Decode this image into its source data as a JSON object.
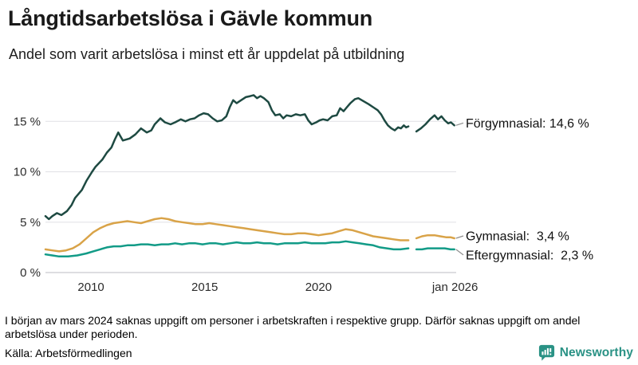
{
  "header": {
    "title": "Långtidsarbetslösa i Gävle kommun",
    "subtitle": "Andel som varit arbetslösa i minst ett år uppdelat på utbildning"
  },
  "chart_data": {
    "type": "line",
    "title": "Långtidsarbetslösa i Gävle kommun",
    "subtitle": "Andel som varit arbetslösa i minst ett år uppdelat på utbildning",
    "unit": "%",
    "grid": "horizontal-only",
    "legend_position": "end-of-line-labels-right",
    "x_axis": {
      "range": [
        2008.0,
        2026.05
      ],
      "ticks": [
        {
          "t": 2010,
          "label": "2010"
        },
        {
          "t": 2015,
          "label": "2015"
        },
        {
          "t": 2020,
          "label": "2020"
        },
        {
          "t": 2026.0,
          "label": "jan 2026"
        }
      ]
    },
    "y_axis": {
      "range": [
        0,
        18
      ],
      "ticks": [
        {
          "v": 0,
          "label": "0 %"
        },
        {
          "v": 5,
          "label": "5 %"
        },
        {
          "v": 10,
          "label": "10 %"
        },
        {
          "v": 15,
          "label": "15 %"
        }
      ]
    },
    "data_gap": {
      "from": 2023.95,
      "to": 2024.3,
      "reason": "mars 2024 saknas uppgift"
    },
    "series": [
      {
        "id": "forgymnasial",
        "name": "Förgymnasial",
        "end_value": 14.6,
        "end_label": "Förgymnasial: 14,6 %",
        "color": "#1e4a42",
        "segments": [
          [
            [
              2008.0,
              5.6
            ],
            [
              2008.15,
              5.3
            ],
            [
              2008.3,
              5.6
            ],
            [
              2008.5,
              5.9
            ],
            [
              2008.7,
              5.7
            ],
            [
              2008.95,
              6.1
            ],
            [
              2009.15,
              6.7
            ],
            [
              2009.3,
              7.4
            ],
            [
              2009.6,
              8.2
            ],
            [
              2009.8,
              9.1
            ],
            [
              2010.05,
              10.0
            ],
            [
              2010.2,
              10.5
            ],
            [
              2010.5,
              11.2
            ],
            [
              2010.7,
              11.9
            ],
            [
              2010.9,
              12.4
            ],
            [
              2011.05,
              13.2
            ],
            [
              2011.2,
              13.9
            ],
            [
              2011.4,
              13.1
            ],
            [
              2011.7,
              13.3
            ],
            [
              2011.95,
              13.7
            ],
            [
              2012.2,
              14.3
            ],
            [
              2012.45,
              13.9
            ],
            [
              2012.65,
              14.1
            ],
            [
              2012.8,
              14.7
            ],
            [
              2013.05,
              15.3
            ],
            [
              2013.25,
              14.9
            ],
            [
              2013.5,
              14.7
            ],
            [
              2013.7,
              14.9
            ],
            [
              2013.95,
              15.2
            ],
            [
              2014.15,
              15.0
            ],
            [
              2014.35,
              15.2
            ],
            [
              2014.55,
              15.3
            ],
            [
              2014.75,
              15.6
            ],
            [
              2014.95,
              15.8
            ],
            [
              2015.15,
              15.7
            ],
            [
              2015.35,
              15.3
            ],
            [
              2015.55,
              15.0
            ],
            [
              2015.75,
              15.1
            ],
            [
              2015.95,
              15.5
            ],
            [
              2016.1,
              16.4
            ],
            [
              2016.25,
              17.1
            ],
            [
              2016.4,
              16.8
            ],
            [
              2016.6,
              17.1
            ],
            [
              2016.8,
              17.4
            ],
            [
              2017.0,
              17.5
            ],
            [
              2017.15,
              17.6
            ],
            [
              2017.3,
              17.3
            ],
            [
              2017.45,
              17.5
            ],
            [
              2017.6,
              17.3
            ],
            [
              2017.8,
              16.9
            ],
            [
              2017.95,
              16.1
            ],
            [
              2018.1,
              15.6
            ],
            [
              2018.3,
              15.7
            ],
            [
              2018.45,
              15.3
            ],
            [
              2018.6,
              15.6
            ],
            [
              2018.8,
              15.5
            ],
            [
              2019.0,
              15.7
            ],
            [
              2019.2,
              15.6
            ],
            [
              2019.4,
              15.7
            ],
            [
              2019.55,
              15.1
            ],
            [
              2019.7,
              14.7
            ],
            [
              2019.9,
              14.9
            ],
            [
              2020.05,
              15.1
            ],
            [
              2020.2,
              15.2
            ],
            [
              2020.4,
              15.1
            ],
            [
              2020.6,
              15.5
            ],
            [
              2020.8,
              15.6
            ],
            [
              2020.95,
              16.3
            ],
            [
              2021.1,
              16.0
            ],
            [
              2021.25,
              16.4
            ],
            [
              2021.4,
              16.8
            ],
            [
              2021.6,
              17.2
            ],
            [
              2021.75,
              17.3
            ],
            [
              2021.9,
              17.1
            ],
            [
              2022.05,
              16.9
            ],
            [
              2022.2,
              16.7
            ],
            [
              2022.4,
              16.4
            ],
            [
              2022.6,
              16.1
            ],
            [
              2022.75,
              15.7
            ],
            [
              2022.9,
              15.1
            ],
            [
              2023.05,
              14.6
            ],
            [
              2023.2,
              14.3
            ],
            [
              2023.35,
              14.1
            ],
            [
              2023.5,
              14.4
            ],
            [
              2023.62,
              14.3
            ],
            [
              2023.75,
              14.6
            ],
            [
              2023.85,
              14.4
            ],
            [
              2023.95,
              14.5
            ]
          ],
          [
            [
              2024.3,
              14.0
            ],
            [
              2024.5,
              14.3
            ],
            [
              2024.7,
              14.7
            ],
            [
              2024.9,
              15.2
            ],
            [
              2025.1,
              15.6
            ],
            [
              2025.25,
              15.2
            ],
            [
              2025.4,
              15.5
            ],
            [
              2025.55,
              15.1
            ],
            [
              2025.7,
              14.8
            ],
            [
              2025.82,
              14.9
            ],
            [
              2025.97,
              14.6
            ]
          ]
        ]
      },
      {
        "id": "gymnasial",
        "name": "Gymnasial",
        "end_value": 3.4,
        "end_label": "Gymnasial:  3,4 %",
        "color": "#d9a348",
        "segments": [
          [
            [
              2008.0,
              2.3
            ],
            [
              2008.3,
              2.2
            ],
            [
              2008.6,
              2.1
            ],
            [
              2008.9,
              2.2
            ],
            [
              2009.2,
              2.4
            ],
            [
              2009.5,
              2.8
            ],
            [
              2009.8,
              3.4
            ],
            [
              2010.1,
              4.0
            ],
            [
              2010.4,
              4.4
            ],
            [
              2010.7,
              4.7
            ],
            [
              2011.0,
              4.9
            ],
            [
              2011.3,
              5.0
            ],
            [
              2011.6,
              5.1
            ],
            [
              2011.9,
              5.0
            ],
            [
              2012.2,
              4.9
            ],
            [
              2012.5,
              5.1
            ],
            [
              2012.8,
              5.3
            ],
            [
              2013.1,
              5.4
            ],
            [
              2013.4,
              5.3
            ],
            [
              2013.7,
              5.1
            ],
            [
              2014.0,
              5.0
            ],
            [
              2014.3,
              4.9
            ],
            [
              2014.6,
              4.8
            ],
            [
              2014.9,
              4.8
            ],
            [
              2015.2,
              4.9
            ],
            [
              2015.5,
              4.8
            ],
            [
              2015.8,
              4.7
            ],
            [
              2016.1,
              4.6
            ],
            [
              2016.4,
              4.5
            ],
            [
              2016.7,
              4.4
            ],
            [
              2017.0,
              4.3
            ],
            [
              2017.3,
              4.2
            ],
            [
              2017.6,
              4.1
            ],
            [
              2017.9,
              4.0
            ],
            [
              2018.2,
              3.9
            ],
            [
              2018.5,
              3.8
            ],
            [
              2018.8,
              3.8
            ],
            [
              2019.1,
              3.9
            ],
            [
              2019.4,
              3.9
            ],
            [
              2019.7,
              3.8
            ],
            [
              2020.0,
              3.7
            ],
            [
              2020.3,
              3.8
            ],
            [
              2020.6,
              3.9
            ],
            [
              2020.9,
              4.1
            ],
            [
              2021.2,
              4.3
            ],
            [
              2021.5,
              4.2
            ],
            [
              2021.8,
              4.0
            ],
            [
              2022.1,
              3.8
            ],
            [
              2022.4,
              3.6
            ],
            [
              2022.7,
              3.5
            ],
            [
              2023.0,
              3.4
            ],
            [
              2023.3,
              3.3
            ],
            [
              2023.6,
              3.2
            ],
            [
              2023.95,
              3.2
            ]
          ],
          [
            [
              2024.3,
              3.4
            ],
            [
              2024.55,
              3.6
            ],
            [
              2024.8,
              3.7
            ],
            [
              2025.1,
              3.7
            ],
            [
              2025.35,
              3.6
            ],
            [
              2025.6,
              3.5
            ],
            [
              2025.8,
              3.5
            ],
            [
              2025.97,
              3.4
            ]
          ]
        ]
      },
      {
        "id": "eftergymnasial",
        "name": "Eftergymnasial",
        "end_value": 2.3,
        "end_label": "Eftergymnasial:  2,3 %",
        "color": "#129b87",
        "segments": [
          [
            [
              2008.0,
              1.8
            ],
            [
              2008.3,
              1.7
            ],
            [
              2008.6,
              1.6
            ],
            [
              2009.0,
              1.6
            ],
            [
              2009.4,
              1.7
            ],
            [
              2009.8,
              1.9
            ],
            [
              2010.1,
              2.1
            ],
            [
              2010.4,
              2.3
            ],
            [
              2010.7,
              2.5
            ],
            [
              2011.0,
              2.6
            ],
            [
              2011.3,
              2.6
            ],
            [
              2011.6,
              2.7
            ],
            [
              2011.9,
              2.7
            ],
            [
              2012.2,
              2.8
            ],
            [
              2012.5,
              2.8
            ],
            [
              2012.8,
              2.7
            ],
            [
              2013.1,
              2.8
            ],
            [
              2013.4,
              2.8
            ],
            [
              2013.7,
              2.9
            ],
            [
              2014.0,
              2.8
            ],
            [
              2014.3,
              2.9
            ],
            [
              2014.6,
              2.9
            ],
            [
              2014.9,
              2.8
            ],
            [
              2015.2,
              2.9
            ],
            [
              2015.5,
              2.9
            ],
            [
              2015.8,
              2.8
            ],
            [
              2016.1,
              2.9
            ],
            [
              2016.4,
              3.0
            ],
            [
              2016.7,
              2.9
            ],
            [
              2017.0,
              2.9
            ],
            [
              2017.3,
              3.0
            ],
            [
              2017.6,
              2.9
            ],
            [
              2017.9,
              2.9
            ],
            [
              2018.2,
              2.8
            ],
            [
              2018.5,
              2.9
            ],
            [
              2018.8,
              2.9
            ],
            [
              2019.1,
              2.9
            ],
            [
              2019.4,
              3.0
            ],
            [
              2019.7,
              2.9
            ],
            [
              2020.0,
              2.9
            ],
            [
              2020.3,
              2.9
            ],
            [
              2020.6,
              3.0
            ],
            [
              2020.9,
              3.0
            ],
            [
              2021.2,
              3.1
            ],
            [
              2021.5,
              3.0
            ],
            [
              2021.8,
              2.9
            ],
            [
              2022.1,
              2.8
            ],
            [
              2022.4,
              2.7
            ],
            [
              2022.7,
              2.5
            ],
            [
              2023.0,
              2.4
            ],
            [
              2023.3,
              2.3
            ],
            [
              2023.6,
              2.3
            ],
            [
              2023.95,
              2.4
            ]
          ],
          [
            [
              2024.3,
              2.3
            ],
            [
              2024.55,
              2.3
            ],
            [
              2024.8,
              2.4
            ],
            [
              2025.05,
              2.4
            ],
            [
              2025.3,
              2.4
            ],
            [
              2025.55,
              2.4
            ],
            [
              2025.8,
              2.3
            ],
            [
              2025.97,
              2.3
            ]
          ]
        ]
      }
    ],
    "colors": {
      "gridline": "#e4e4e8",
      "baseline": "#d2d2d7",
      "connector": "#8f8f8f",
      "brand_teal": "#2a9285"
    }
  },
  "footer": {
    "note": "I början av mars 2024 saknas uppgift om personer i arbetskraften i respektive grupp. Därför saknas uppgift om andel arbetslösa under perioden.",
    "source": "Källa: Arbetsförmedlingen",
    "brand": "Newsworthy"
  }
}
